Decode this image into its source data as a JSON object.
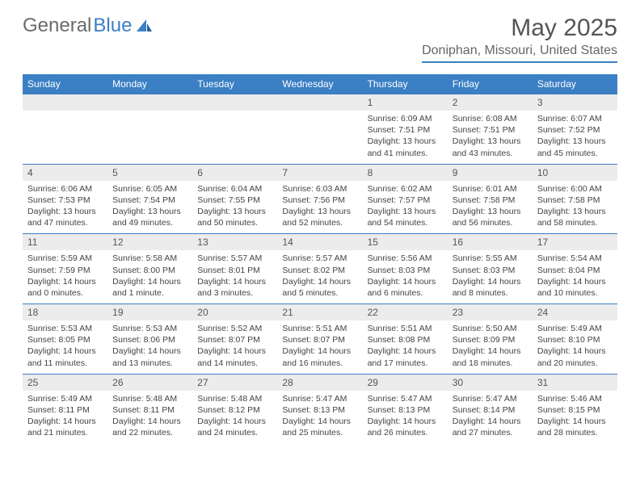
{
  "brand": {
    "part1": "General",
    "part2": "Blue"
  },
  "title": "May 2025",
  "location": "Doniphan, Missouri, United States",
  "colors": {
    "header_bg": "#3b7fc4",
    "header_text": "#ffffff",
    "daynum_bg": "#ececec",
    "border": "#3b7fc4",
    "body_text": "#444444",
    "title_text": "#555555"
  },
  "weekdays": [
    "Sunday",
    "Monday",
    "Tuesday",
    "Wednesday",
    "Thursday",
    "Friday",
    "Saturday"
  ],
  "weeks": [
    {
      "nums": [
        "",
        "",
        "",
        "",
        "1",
        "2",
        "3"
      ],
      "cells": [
        null,
        null,
        null,
        null,
        {
          "sunrise": "6:09 AM",
          "sunset": "7:51 PM",
          "daylight": "13 hours and 41 minutes."
        },
        {
          "sunrise": "6:08 AM",
          "sunset": "7:51 PM",
          "daylight": "13 hours and 43 minutes."
        },
        {
          "sunrise": "6:07 AM",
          "sunset": "7:52 PM",
          "daylight": "13 hours and 45 minutes."
        }
      ]
    },
    {
      "nums": [
        "4",
        "5",
        "6",
        "7",
        "8",
        "9",
        "10"
      ],
      "cells": [
        {
          "sunrise": "6:06 AM",
          "sunset": "7:53 PM",
          "daylight": "13 hours and 47 minutes."
        },
        {
          "sunrise": "6:05 AM",
          "sunset": "7:54 PM",
          "daylight": "13 hours and 49 minutes."
        },
        {
          "sunrise": "6:04 AM",
          "sunset": "7:55 PM",
          "daylight": "13 hours and 50 minutes."
        },
        {
          "sunrise": "6:03 AM",
          "sunset": "7:56 PM",
          "daylight": "13 hours and 52 minutes."
        },
        {
          "sunrise": "6:02 AM",
          "sunset": "7:57 PM",
          "daylight": "13 hours and 54 minutes."
        },
        {
          "sunrise": "6:01 AM",
          "sunset": "7:58 PM",
          "daylight": "13 hours and 56 minutes."
        },
        {
          "sunrise": "6:00 AM",
          "sunset": "7:58 PM",
          "daylight": "13 hours and 58 minutes."
        }
      ]
    },
    {
      "nums": [
        "11",
        "12",
        "13",
        "14",
        "15",
        "16",
        "17"
      ],
      "cells": [
        {
          "sunrise": "5:59 AM",
          "sunset": "7:59 PM",
          "daylight": "14 hours and 0 minutes."
        },
        {
          "sunrise": "5:58 AM",
          "sunset": "8:00 PM",
          "daylight": "14 hours and 1 minute."
        },
        {
          "sunrise": "5:57 AM",
          "sunset": "8:01 PM",
          "daylight": "14 hours and 3 minutes."
        },
        {
          "sunrise": "5:57 AM",
          "sunset": "8:02 PM",
          "daylight": "14 hours and 5 minutes."
        },
        {
          "sunrise": "5:56 AM",
          "sunset": "8:03 PM",
          "daylight": "14 hours and 6 minutes."
        },
        {
          "sunrise": "5:55 AM",
          "sunset": "8:03 PM",
          "daylight": "14 hours and 8 minutes."
        },
        {
          "sunrise": "5:54 AM",
          "sunset": "8:04 PM",
          "daylight": "14 hours and 10 minutes."
        }
      ]
    },
    {
      "nums": [
        "18",
        "19",
        "20",
        "21",
        "22",
        "23",
        "24"
      ],
      "cells": [
        {
          "sunrise": "5:53 AM",
          "sunset": "8:05 PM",
          "daylight": "14 hours and 11 minutes."
        },
        {
          "sunrise": "5:53 AM",
          "sunset": "8:06 PM",
          "daylight": "14 hours and 13 minutes."
        },
        {
          "sunrise": "5:52 AM",
          "sunset": "8:07 PM",
          "daylight": "14 hours and 14 minutes."
        },
        {
          "sunrise": "5:51 AM",
          "sunset": "8:07 PM",
          "daylight": "14 hours and 16 minutes."
        },
        {
          "sunrise": "5:51 AM",
          "sunset": "8:08 PM",
          "daylight": "14 hours and 17 minutes."
        },
        {
          "sunrise": "5:50 AM",
          "sunset": "8:09 PM",
          "daylight": "14 hours and 18 minutes."
        },
        {
          "sunrise": "5:49 AM",
          "sunset": "8:10 PM",
          "daylight": "14 hours and 20 minutes."
        }
      ]
    },
    {
      "nums": [
        "25",
        "26",
        "27",
        "28",
        "29",
        "30",
        "31"
      ],
      "cells": [
        {
          "sunrise": "5:49 AM",
          "sunset": "8:11 PM",
          "daylight": "14 hours and 21 minutes."
        },
        {
          "sunrise": "5:48 AM",
          "sunset": "8:11 PM",
          "daylight": "14 hours and 22 minutes."
        },
        {
          "sunrise": "5:48 AM",
          "sunset": "8:12 PM",
          "daylight": "14 hours and 24 minutes."
        },
        {
          "sunrise": "5:47 AM",
          "sunset": "8:13 PM",
          "daylight": "14 hours and 25 minutes."
        },
        {
          "sunrise": "5:47 AM",
          "sunset": "8:13 PM",
          "daylight": "14 hours and 26 minutes."
        },
        {
          "sunrise": "5:47 AM",
          "sunset": "8:14 PM",
          "daylight": "14 hours and 27 minutes."
        },
        {
          "sunrise": "5:46 AM",
          "sunset": "8:15 PM",
          "daylight": "14 hours and 28 minutes."
        }
      ]
    }
  ],
  "labels": {
    "sunrise": "Sunrise:",
    "sunset": "Sunset:",
    "daylight": "Daylight:"
  }
}
